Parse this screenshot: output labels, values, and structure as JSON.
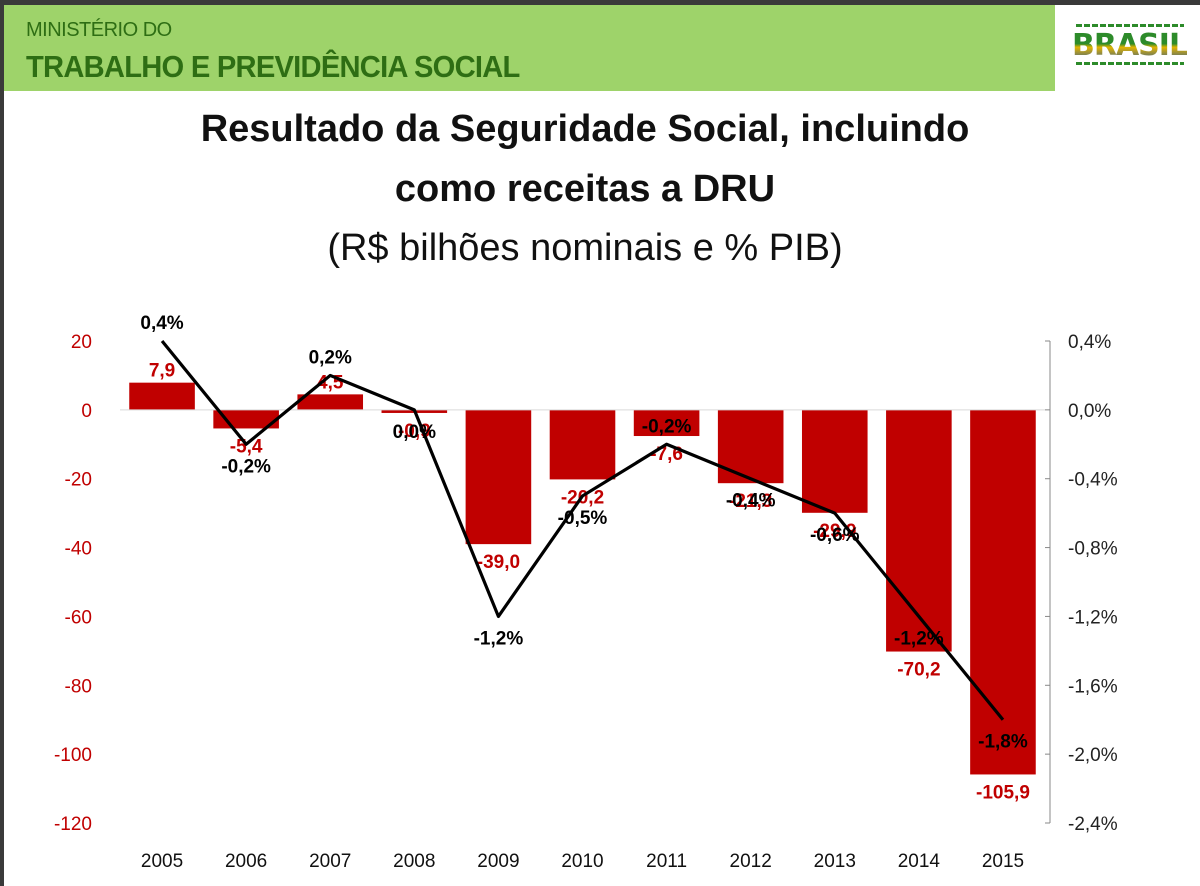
{
  "header": {
    "ministry_line1": "MINISTÉRIO DO",
    "ministry_line2": "TRABALHO E PREVIDÊNCIA SOCIAL",
    "logo_text": "BRASIL"
  },
  "colors": {
    "banner": "#9ed36a",
    "ministry_text": "#2e6e14",
    "bars": "#c00000",
    "line": "#000000"
  },
  "chart_data": {
    "type": "bar",
    "title_line1": "Resultado da Seguridade Social, incluindo",
    "title_line2": "como receitas a DRU",
    "subtitle": "(R$ bilhões nominais e % PIB)",
    "categories": [
      "2005",
      "2006",
      "2007",
      "2008",
      "2009",
      "2010",
      "2011",
      "2012",
      "2013",
      "2014",
      "2015"
    ],
    "series": [
      {
        "type": "bar",
        "axis": "left",
        "values": [
          7.9,
          -5.4,
          4.5,
          -0.9,
          -39.0,
          -20.2,
          -7.6,
          -21.3,
          -29.9,
          -70.2,
          -105.9
        ],
        "labels": [
          "7,9",
          "-5,4",
          "4,5",
          "-0,9",
          "-39,0",
          "-20,2",
          "-7,6",
          "-21,3",
          "-29,9",
          "-70,2",
          "-105,9"
        ]
      },
      {
        "type": "line",
        "axis": "right",
        "values": [
          0.4,
          -0.2,
          0.2,
          0.0,
          -1.2,
          -0.5,
          -0.2,
          -0.4,
          -0.6,
          -1.2,
          -1.8
        ],
        "labels": [
          "0,4%",
          "-0,2%",
          "0,2%",
          "0,0%",
          "-1,2%",
          "-0,5%",
          "-0,2%",
          "-0,4%",
          "-0,6%",
          "-1,2%",
          "-1,8%"
        ]
      }
    ],
    "y_left": {
      "lim": [
        -120,
        20
      ],
      "ticks": [
        20,
        0,
        -20,
        -40,
        -60,
        -80,
        -100,
        -120
      ],
      "tick_labels": [
        "20",
        "0",
        "-20",
        "-40",
        "-60",
        "-80",
        "-100",
        "-120"
      ]
    },
    "y_right": {
      "lim": [
        -2.4,
        0.4
      ],
      "ticks": [
        0.4,
        0.0,
        -0.4,
        -0.8,
        -1.2,
        -1.6,
        -2.0,
        -2.4
      ],
      "tick_labels": [
        "0,4%",
        "0,0%",
        "-0,4%",
        "-0,8%",
        "-1,2%",
        "-1,6%",
        "-2,0%",
        "-2,4%"
      ]
    },
    "grid": false
  }
}
